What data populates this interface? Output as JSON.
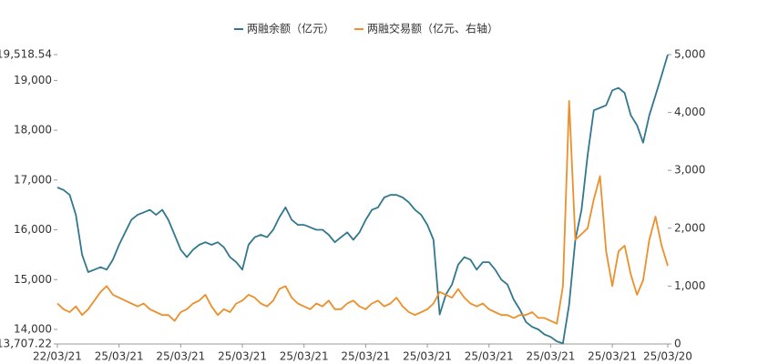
{
  "chart_data": {
    "type": "line",
    "categories": [
      "22/03/21",
      null,
      null,
      null,
      null,
      null,
      null,
      null,
      null,
      null,
      "25/03/21",
      null,
      null,
      null,
      null,
      null,
      null,
      null,
      null,
      null,
      "25/03/21",
      null,
      null,
      null,
      null,
      null,
      null,
      null,
      null,
      null,
      "25/03/21",
      null,
      null,
      null,
      null,
      null,
      null,
      null,
      null,
      null,
      "25/03/21",
      null,
      null,
      null,
      null,
      null,
      null,
      null,
      null,
      null,
      "25/03/21",
      null,
      null,
      null,
      null,
      null,
      null,
      null,
      null,
      null,
      "25/03/21",
      null,
      null,
      null,
      null,
      null,
      null,
      null,
      null,
      null,
      "25/03/21",
      null,
      null,
      null,
      null,
      null,
      null,
      null,
      null,
      null,
      "25/03/21",
      null,
      null,
      null,
      null,
      null,
      null,
      null,
      null,
      null,
      "25/03/21",
      null,
      null,
      null,
      null,
      null,
      null,
      null,
      null,
      "25/03/20"
    ],
    "series": [
      {
        "name": "两融余额（亿元）",
        "color": "#31788f",
        "values": [
          16850,
          16800,
          16700,
          16300,
          15500,
          15150,
          15200,
          15250,
          15200,
          15400,
          15700,
          15950,
          16200,
          16300,
          16350,
          16400,
          16300,
          16400,
          16200,
          15900,
          15600,
          15450,
          15600,
          15700,
          15750,
          15700,
          15750,
          15650,
          15450,
          15350,
          15200,
          15700,
          15850,
          15900,
          15850,
          16000,
          16250,
          16450,
          16200,
          16100,
          16100,
          16050,
          16000,
          16000,
          15900,
          15750,
          15850,
          15950,
          15800,
          15950,
          16200,
          16400,
          16450,
          16650,
          16700,
          16700,
          16650,
          16550,
          16400,
          16300,
          16100,
          15800,
          14300,
          14700,
          14900,
          15300,
          15450,
          15400,
          15200,
          15350,
          15350,
          15200,
          15000,
          14900,
          14600,
          14400,
          14150,
          14050,
          14000,
          13900,
          13850,
          13760,
          13720,
          14500,
          15800,
          16400,
          17500,
          18400,
          18450,
          18500,
          18800,
          18850,
          18750,
          18300,
          18100,
          17750,
          18300,
          18700,
          19100,
          19518.54
        ]
      },
      {
        "name": "两融交易额（亿元、右轴）",
        "color": "#ed8f2a",
        "axis": "y2",
        "values": [
          700,
          600,
          550,
          650,
          500,
          600,
          750,
          900,
          1000,
          850,
          800,
          750,
          700,
          650,
          700,
          600,
          550,
          500,
          500,
          400,
          550,
          600,
          700,
          750,
          850,
          650,
          500,
          600,
          550,
          700,
          750,
          850,
          800,
          700,
          650,
          750,
          950,
          1000,
          800,
          700,
          650,
          600,
          700,
          650,
          750,
          600,
          600,
          700,
          750,
          650,
          600,
          700,
          750,
          650,
          700,
          800,
          650,
          550,
          500,
          550,
          600,
          700,
          900,
          850,
          800,
          950,
          800,
          700,
          650,
          700,
          600,
          550,
          500,
          500,
          450,
          500,
          500,
          550,
          450,
          450,
          400,
          350,
          1000,
          4200,
          1800,
          1900,
          2000,
          2500,
          2900,
          1600,
          1000,
          1600,
          1700,
          1200,
          850,
          1100,
          1800,
          2200,
          1700,
          1350
        ]
      }
    ],
    "ylim": [
      13707.22,
      19518.54
    ],
    "yticks": [
      {
        "value": 13707.22,
        "label": "13,707.22"
      },
      {
        "value": 14000,
        "label": "14,000"
      },
      {
        "value": 15000,
        "label": "15,000"
      },
      {
        "value": 16000,
        "label": "16,000"
      },
      {
        "value": 17000,
        "label": "17,000"
      },
      {
        "value": 18000,
        "label": "18,000"
      },
      {
        "value": 19000,
        "label": "19,000"
      },
      {
        "value": 19518.54,
        "label": "19,518.54"
      }
    ],
    "y2lim": [
      0,
      5000
    ],
    "y2ticks": [
      0,
      {
        "value": 1000,
        "label": "1,000"
      },
      {
        "value": 2000,
        "label": "2,000"
      },
      {
        "value": 3000,
        "label": "3,000"
      },
      {
        "value": 4000,
        "label": "4,000"
      },
      {
        "value": 5000,
        "label": "5,000"
      }
    ],
    "legend": "top"
  }
}
